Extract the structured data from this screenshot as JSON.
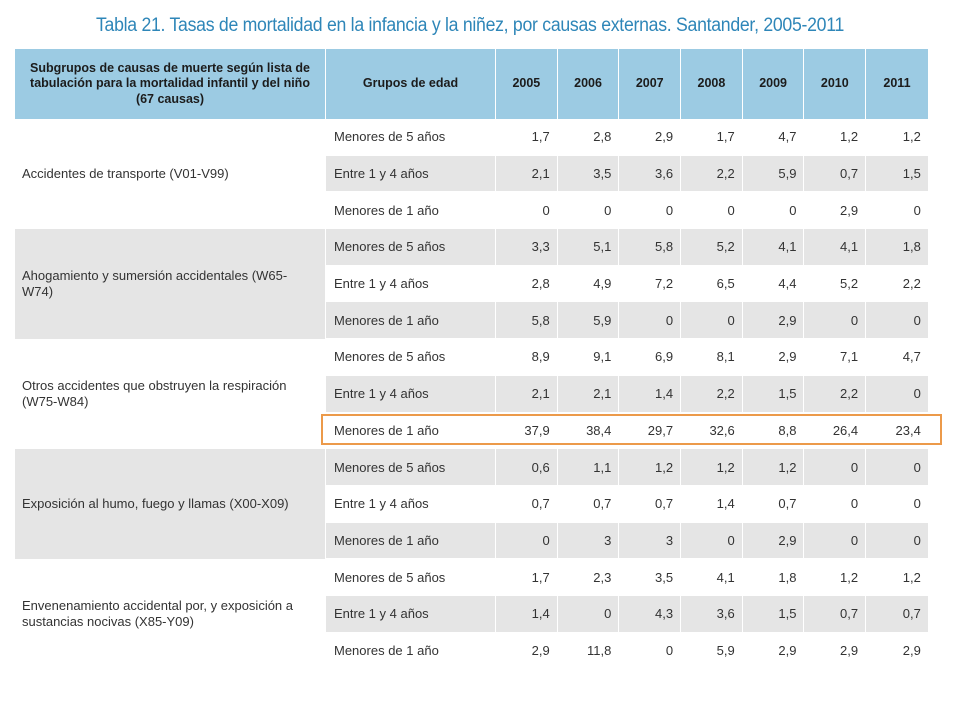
{
  "title": "Tabla 21. Tasas de mortalidad en la infancia y la niñez, por causas externas. Santander, 2005-2011",
  "headers": {
    "cause": "Subgrupos de causas de muerte según lista de tabulación para la mortalidad infantil y del niño (67 causas)",
    "age": "Grupos de edad",
    "years": [
      "2005",
      "2006",
      "2007",
      "2008",
      "2009",
      "2010",
      "2011"
    ]
  },
  "colors": {
    "title": "#2e86b8",
    "header_bg": "#9ccbe3",
    "row_shade": "#e5e5e5",
    "highlight": "#ec9a4a"
  },
  "groups": [
    {
      "cause": "Accidentes de transporte (V01-V99)",
      "rows": [
        {
          "age": "Menores de 5 años",
          "values": [
            "1,7",
            "2,8",
            "2,9",
            "1,7",
            "4,7",
            "1,2",
            "1,2"
          ]
        },
        {
          "age": "Entre 1 y 4 años",
          "values": [
            "2,1",
            "3,5",
            "3,6",
            "2,2",
            "5,9",
            "0,7",
            "1,5"
          ]
        },
        {
          "age": "Menores de 1 año",
          "values": [
            "0",
            "0",
            "0",
            "0",
            "0",
            "2,9",
            "0"
          ]
        }
      ]
    },
    {
      "cause": "Ahogamiento y sumersión accidentales (W65-W74)",
      "rows": [
        {
          "age": "Menores de 5 años",
          "values": [
            "3,3",
            "5,1",
            "5,8",
            "5,2",
            "4,1",
            "4,1",
            "1,8"
          ]
        },
        {
          "age": "Entre 1 y 4 años",
          "values": [
            "2,8",
            "4,9",
            "7,2",
            "6,5",
            "4,4",
            "5,2",
            "2,2"
          ]
        },
        {
          "age": "Menores de 1 año",
          "values": [
            "5,8",
            "5,9",
            "0",
            "0",
            "2,9",
            "0",
            "0"
          ]
        }
      ]
    },
    {
      "cause": "Otros accidentes que obstruyen la respiración (W75-W84)",
      "rows": [
        {
          "age": "Menores de 5 años",
          "values": [
            "8,9",
            "9,1",
            "6,9",
            "8,1",
            "2,9",
            "7,1",
            "4,7"
          ]
        },
        {
          "age": "Entre 1 y 4 años",
          "values": [
            "2,1",
            "2,1",
            "1,4",
            "2,2",
            "1,5",
            "2,2",
            "0"
          ]
        },
        {
          "age": "Menores de 1 año",
          "values": [
            "37,9",
            "38,4",
            "29,7",
            "32,6",
            "8,8",
            "26,4",
            "23,4"
          ]
        }
      ]
    },
    {
      "cause": "Exposición al humo, fuego y llamas (X00-X09)",
      "rows": [
        {
          "age": "Menores de 5 años",
          "values": [
            "0,6",
            "1,1",
            "1,2",
            "1,2",
            "1,2",
            "0",
            "0"
          ]
        },
        {
          "age": "Entre 1 y 4 años",
          "values": [
            "0,7",
            "0,7",
            "0,7",
            "1,4",
            "0,7",
            "0",
            "0"
          ]
        },
        {
          "age": "Menores de 1 año",
          "values": [
            "0",
            "3",
            "3",
            "0",
            "2,9",
            "0",
            "0"
          ]
        }
      ]
    },
    {
      "cause": "Envenenamiento accidental por, y exposición a sustancias nocivas (X85-Y09)",
      "rows": [
        {
          "age": "Menores de 5 años",
          "values": [
            "1,7",
            "2,3",
            "3,5",
            "4,1",
            "1,8",
            "1,2",
            "1,2"
          ]
        },
        {
          "age": "Entre 1 y 4 años",
          "values": [
            "1,4",
            "0",
            "4,3",
            "3,6",
            "1,5",
            "0,7",
            "0,7"
          ]
        },
        {
          "age": "Menores de 1 año",
          "values": [
            "2,9",
            "11,8",
            "0",
            "5,9",
            "2,9",
            "2,9",
            "2,9"
          ]
        }
      ]
    }
  ]
}
